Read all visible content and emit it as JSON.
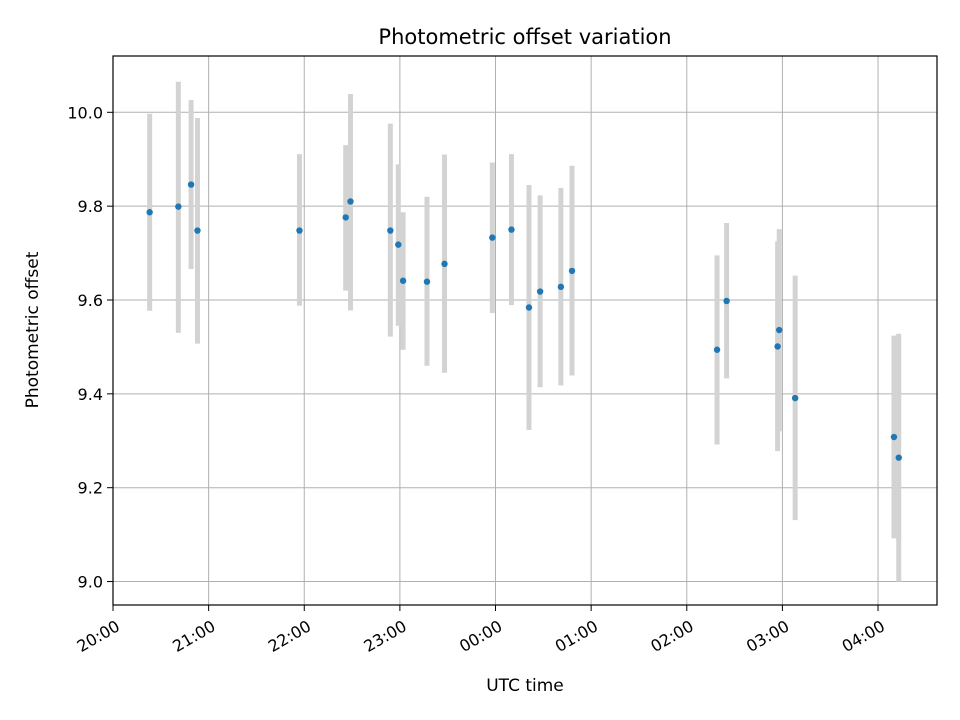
{
  "chart_data": {
    "type": "scatter",
    "title": "Photometric offset variation",
    "xlabel": "UTC time",
    "ylabel": "Photometric offset",
    "x_axis_type": "time",
    "xlim": [
      "20:00",
      "04:37"
    ],
    "ylim": [
      8.95,
      10.12
    ],
    "grid": true,
    "xticks": [
      "20:00",
      "21:00",
      "22:00",
      "23:00",
      "00:00",
      "01:00",
      "02:00",
      "03:00",
      "04:00"
    ],
    "yticks": [
      "9.0",
      "9.2",
      "9.4",
      "9.6",
      "9.8",
      "10.0"
    ],
    "colors": {
      "points": "#1f77b4",
      "errorbars": "#d3d3d3",
      "grid": "#b0b0b0"
    },
    "series": [
      {
        "points": [
          {
            "x": "20:23",
            "y": 9.787,
            "ylow": 9.577,
            "yhigh": 9.997
          },
          {
            "x": "20:41",
            "y": 9.799,
            "ylow": 9.53,
            "yhigh": 10.065
          },
          {
            "x": "20:49",
            "y": 9.846,
            "ylow": 9.666,
            "yhigh": 10.026
          },
          {
            "x": "20:53",
            "y": 9.748,
            "ylow": 9.507,
            "yhigh": 9.988
          },
          {
            "x": "21:57",
            "y": 9.748,
            "ylow": 9.588,
            "yhigh": 9.911
          },
          {
            "x": "22:26",
            "y": 9.776,
            "ylow": 9.62,
            "yhigh": 9.93
          },
          {
            "x": "22:29",
            "y": 9.81,
            "ylow": 9.578,
            "yhigh": 10.039
          },
          {
            "x": "22:54",
            "y": 9.748,
            "ylow": 9.522,
            "yhigh": 9.976
          },
          {
            "x": "22:59",
            "y": 9.718,
            "ylow": 9.545,
            "yhigh": 9.889
          },
          {
            "x": "23:02",
            "y": 9.641,
            "ylow": 9.494,
            "yhigh": 9.787
          },
          {
            "x": "23:17",
            "y": 9.639,
            "ylow": 9.46,
            "yhigh": 9.82
          },
          {
            "x": "23:28",
            "y": 9.677,
            "ylow": 9.445,
            "yhigh": 9.91
          },
          {
            "x": "23:58",
            "y": 9.733,
            "ylow": 9.572,
            "yhigh": 9.893
          },
          {
            "x": "00:10",
            "y": 9.75,
            "ylow": 9.589,
            "yhigh": 9.911
          },
          {
            "x": "00:21",
            "y": 9.584,
            "ylow": 9.323,
            "yhigh": 9.845
          },
          {
            "x": "00:28",
            "y": 9.618,
            "ylow": 9.414,
            "yhigh": 9.823
          },
          {
            "x": "00:41",
            "y": 9.628,
            "ylow": 9.418,
            "yhigh": 9.839
          },
          {
            "x": "00:48",
            "y": 9.662,
            "ylow": 9.439,
            "yhigh": 9.886
          },
          {
            "x": "02:19",
            "y": 9.494,
            "ylow": 9.292,
            "yhigh": 9.695
          },
          {
            "x": "02:25",
            "y": 9.598,
            "ylow": 9.433,
            "yhigh": 9.764
          },
          {
            "x": "02:57",
            "y": 9.501,
            "ylow": 9.278,
            "yhigh": 9.725
          },
          {
            "x": "02:58",
            "y": 9.536,
            "ylow": 9.32,
            "yhigh": 9.751
          },
          {
            "x": "03:08",
            "y": 9.391,
            "ylow": 9.131,
            "yhigh": 9.652
          },
          {
            "x": "04:10",
            "y": 9.308,
            "ylow": 9.092,
            "yhigh": 9.524
          },
          {
            "x": "04:13",
            "y": 9.264,
            "ylow": 9.0,
            "yhigh": 9.528
          }
        ]
      }
    ]
  }
}
